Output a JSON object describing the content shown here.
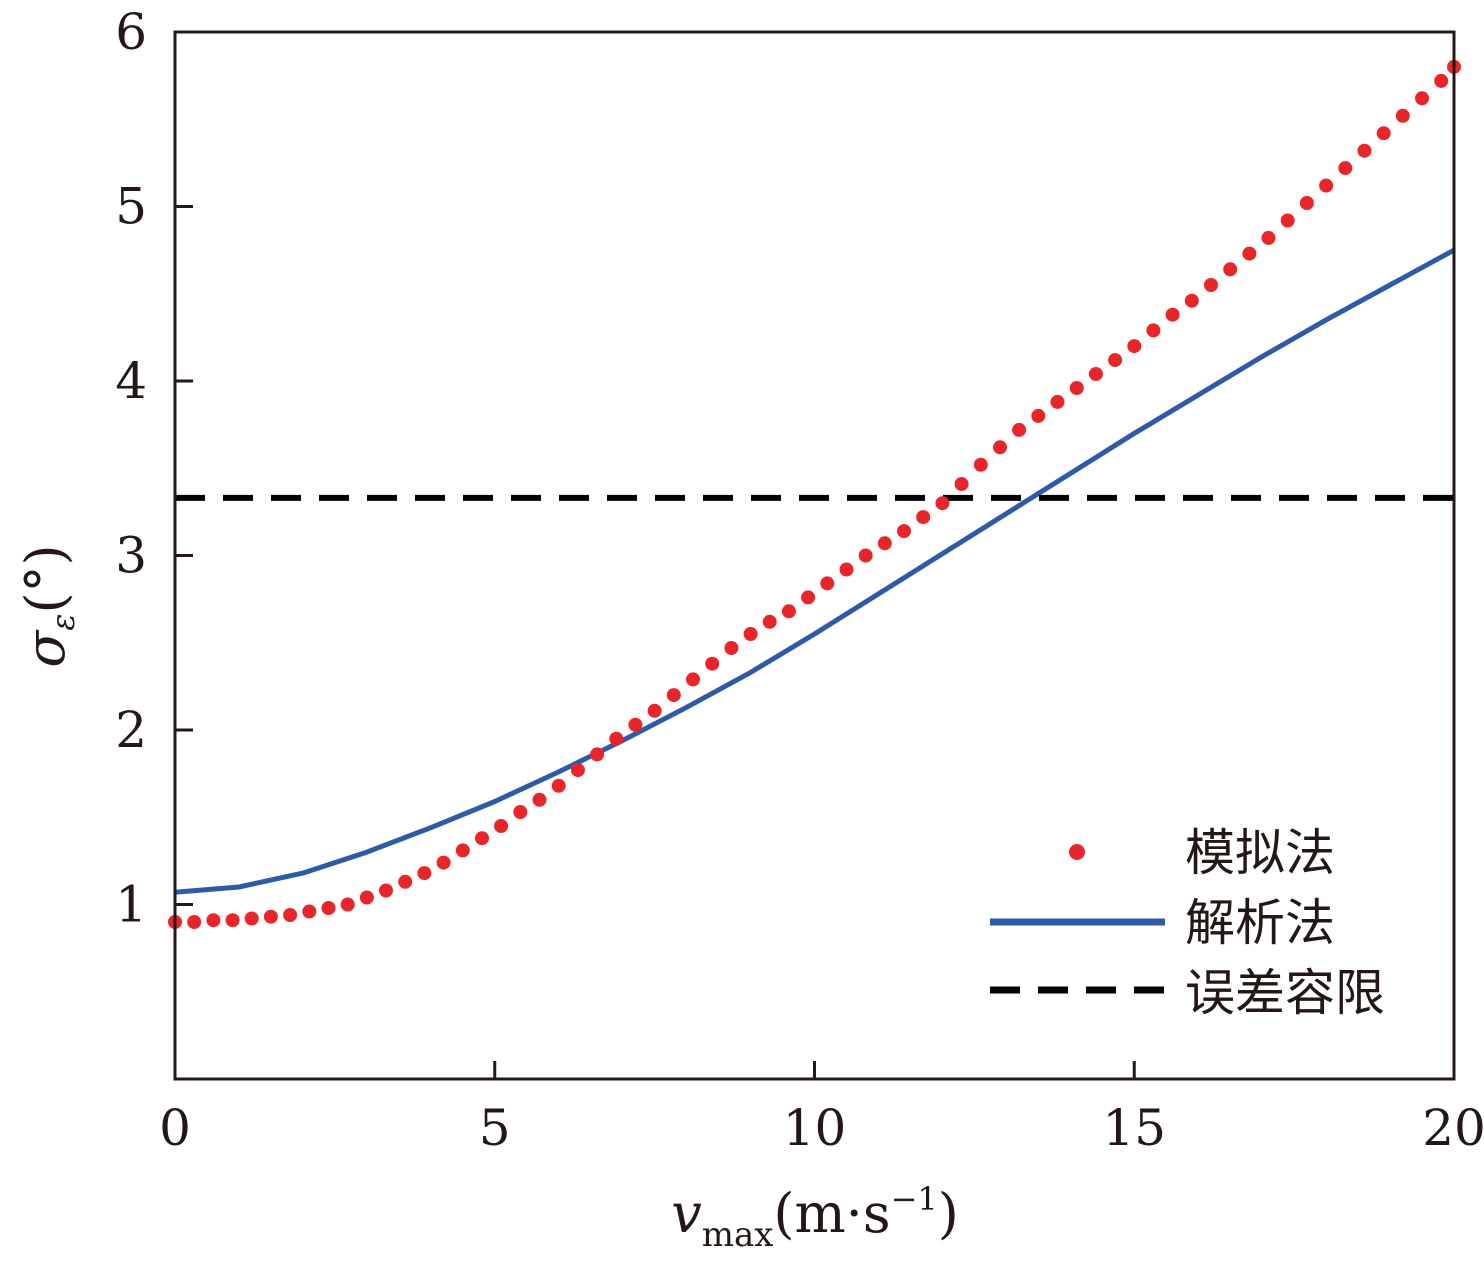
{
  "chart_data": {
    "type": "scatter",
    "xlim": [
      0,
      20
    ],
    "ylim": [
      0,
      6
    ],
    "x_ticks": [
      0,
      5,
      10,
      15,
      20
    ],
    "y_ticks": [
      1,
      2,
      3,
      4,
      5,
      6
    ],
    "x_tick_labels": [
      "0",
      "5",
      "10",
      "15",
      "20"
    ],
    "y_tick_labels": [
      "1",
      "2",
      "3",
      "4",
      "5",
      "6"
    ],
    "xlabel": {
      "main": "v",
      "sub": "max",
      "unit_open": "(m",
      "unit_dot": "·",
      "unit_s": "s",
      "unit_exp": "−1",
      "unit_close": ")"
    },
    "ylabel": {
      "main": "σ",
      "sub": "ε",
      "unit": "(°)"
    },
    "grid": false,
    "legend_position": "bottom-right",
    "series": [
      {
        "name": "模拟法",
        "kind": "scatter",
        "color": "#e8262a",
        "x": [
          0.0,
          0.3,
          0.6,
          0.9,
          1.2,
          1.5,
          1.8,
          2.1,
          2.4,
          2.7,
          3.0,
          3.3,
          3.6,
          3.9,
          4.2,
          4.5,
          4.8,
          5.1,
          5.4,
          5.7,
          6.0,
          6.3,
          6.6,
          6.9,
          7.2,
          7.5,
          7.8,
          8.1,
          8.4,
          8.7,
          9.0,
          9.3,
          9.6,
          9.9,
          10.2,
          10.5,
          10.8,
          11.1,
          11.4,
          11.7,
          12.0,
          12.3,
          12.6,
          12.9,
          13.2,
          13.5,
          13.8,
          14.1,
          14.4,
          14.7,
          15.0,
          15.3,
          15.6,
          15.9,
          16.2,
          16.5,
          16.8,
          17.1,
          17.4,
          17.7,
          18.0,
          18.3,
          18.6,
          18.9,
          19.2,
          19.5,
          19.8,
          20.0
        ],
        "y": [
          0.9,
          0.9,
          0.91,
          0.91,
          0.92,
          0.93,
          0.94,
          0.96,
          0.98,
          1.0,
          1.04,
          1.08,
          1.13,
          1.18,
          1.24,
          1.31,
          1.38,
          1.45,
          1.53,
          1.6,
          1.68,
          1.77,
          1.86,
          1.95,
          2.03,
          2.11,
          2.2,
          2.29,
          2.38,
          2.47,
          2.55,
          2.62,
          2.68,
          2.76,
          2.84,
          2.92,
          3.0,
          3.07,
          3.14,
          3.22,
          3.3,
          3.41,
          3.52,
          3.62,
          3.72,
          3.8,
          3.88,
          3.96,
          4.04,
          4.12,
          4.2,
          4.29,
          4.38,
          4.46,
          4.55,
          4.64,
          4.73,
          4.82,
          4.92,
          5.02,
          5.12,
          5.22,
          5.32,
          5.42,
          5.52,
          5.62,
          5.72,
          5.8
        ]
      },
      {
        "name": "解析法",
        "kind": "line",
        "color": "#2f5aa8",
        "x": [
          0,
          1,
          2,
          3,
          4,
          5,
          6,
          7,
          8,
          9,
          10,
          11,
          12,
          13,
          14,
          15,
          16,
          17,
          18,
          19,
          20
        ],
        "y": [
          1.07,
          1.1,
          1.18,
          1.3,
          1.44,
          1.59,
          1.76,
          1.94,
          2.13,
          2.33,
          2.55,
          2.78,
          3.01,
          3.24,
          3.47,
          3.7,
          3.92,
          4.14,
          4.35,
          4.55,
          4.75
        ]
      },
      {
        "name": "误差容限",
        "kind": "dashed",
        "color": "#000000",
        "x": [
          0,
          20
        ],
        "y": [
          3.33,
          3.33
        ]
      }
    ]
  }
}
